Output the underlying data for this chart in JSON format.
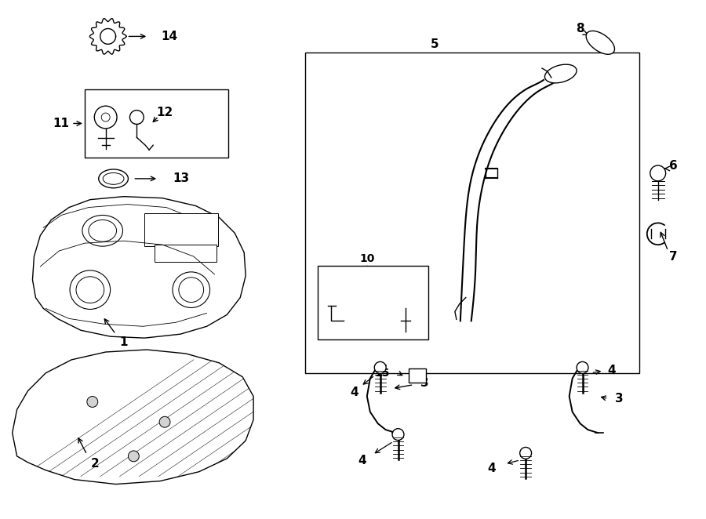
{
  "bg_color": "#ffffff",
  "line_color": "#000000",
  "fig_width": 9.0,
  "fig_height": 6.62
}
